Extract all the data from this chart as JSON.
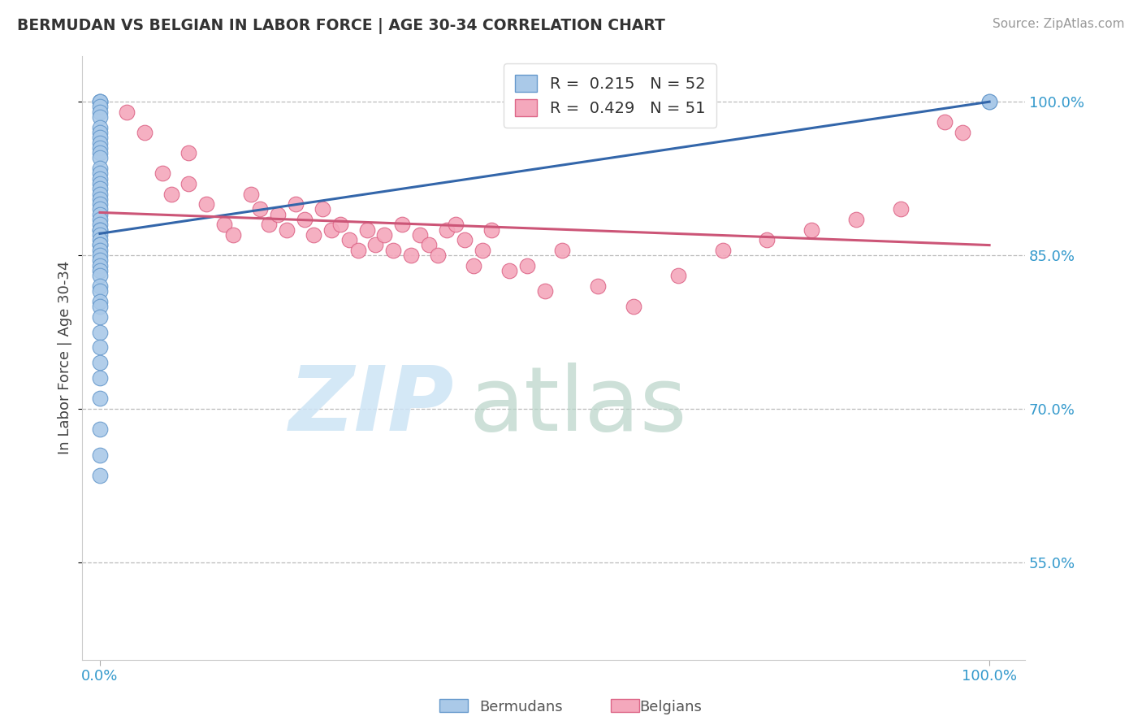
{
  "title": "BERMUDAN VS BELGIAN IN LABOR FORCE | AGE 30-34 CORRELATION CHART",
  "source_text": "Source: ZipAtlas.com",
  "ylabel": "In Labor Force | Age 30-34",
  "xlim": [
    -0.02,
    1.04
  ],
  "ylim": [
    0.455,
    1.045
  ],
  "xtick_vals": [
    0.0,
    1.0
  ],
  "xtick_labels": [
    "0.0%",
    "100.0%"
  ],
  "ytick_vals": [
    0.55,
    0.7,
    0.85,
    1.0
  ],
  "ytick_labels": [
    "55.0%",
    "70.0%",
    "85.0%",
    "100.0%"
  ],
  "legend_label_blue": "R =  0.215   N = 52",
  "legend_label_pink": "R =  0.429   N = 51",
  "blue_color": "#aac9e8",
  "pink_color": "#f4a8bc",
  "blue_edge": "#6699cc",
  "pink_edge": "#dd6688",
  "blue_line_color": "#3366aa",
  "pink_line_color": "#cc5577",
  "watermark_zip_color": "#cde4f5",
  "watermark_atlas_color": "#b8d4c8",
  "dot_size": 180,
  "bermudans_x": [
    0.0,
    0.0,
    0.0,
    0.0,
    0.0,
    0.0,
    0.0,
    0.0,
    0.0,
    0.0,
    0.0,
    0.0,
    0.0,
    0.0,
    0.0,
    0.0,
    0.0,
    0.0,
    0.0,
    0.0,
    0.0,
    0.0,
    0.0,
    0.0,
    0.0,
    0.0,
    0.0,
    0.0,
    0.0,
    0.0,
    0.0,
    0.0,
    0.0,
    0.0,
    0.0,
    0.0,
    0.0,
    0.0,
    0.0,
    0.0,
    0.0,
    0.0,
    0.0,
    0.0,
    0.0,
    0.0,
    0.0,
    0.0,
    0.0,
    0.0,
    1.0,
    1.0
  ],
  "bermudans_y": [
    1.0,
    1.0,
    1.0,
    0.995,
    0.99,
    0.985,
    0.975,
    0.97,
    0.965,
    0.96,
    0.955,
    0.95,
    0.945,
    0.935,
    0.93,
    0.925,
    0.92,
    0.915,
    0.91,
    0.905,
    0.9,
    0.895,
    0.89,
    0.885,
    0.88,
    0.875,
    0.875,
    0.87,
    0.865,
    0.86,
    0.86,
    0.855,
    0.85,
    0.845,
    0.84,
    0.835,
    0.83,
    0.82,
    0.815,
    0.805,
    0.8,
    0.79,
    0.775,
    0.76,
    0.745,
    0.73,
    0.71,
    0.68,
    0.655,
    0.635,
    1.0,
    1.0
  ],
  "belgians_x": [
    0.03,
    0.05,
    0.07,
    0.08,
    0.1,
    0.1,
    0.12,
    0.14,
    0.15,
    0.17,
    0.18,
    0.19,
    0.2,
    0.21,
    0.22,
    0.23,
    0.24,
    0.25,
    0.26,
    0.27,
    0.28,
    0.29,
    0.3,
    0.31,
    0.32,
    0.33,
    0.34,
    0.35,
    0.36,
    0.37,
    0.38,
    0.39,
    0.4,
    0.41,
    0.42,
    0.43,
    0.44,
    0.46,
    0.48,
    0.5,
    0.52,
    0.56,
    0.6,
    0.65,
    0.7,
    0.75,
    0.8,
    0.85,
    0.9,
    0.95,
    0.97
  ],
  "belgians_y": [
    0.99,
    0.97,
    0.93,
    0.91,
    0.95,
    0.92,
    0.9,
    0.88,
    0.87,
    0.91,
    0.895,
    0.88,
    0.89,
    0.875,
    0.9,
    0.885,
    0.87,
    0.895,
    0.875,
    0.88,
    0.865,
    0.855,
    0.875,
    0.86,
    0.87,
    0.855,
    0.88,
    0.85,
    0.87,
    0.86,
    0.85,
    0.875,
    0.88,
    0.865,
    0.84,
    0.855,
    0.875,
    0.835,
    0.84,
    0.815,
    0.855,
    0.82,
    0.8,
    0.83,
    0.855,
    0.865,
    0.875,
    0.885,
    0.895,
    0.98,
    0.97
  ]
}
